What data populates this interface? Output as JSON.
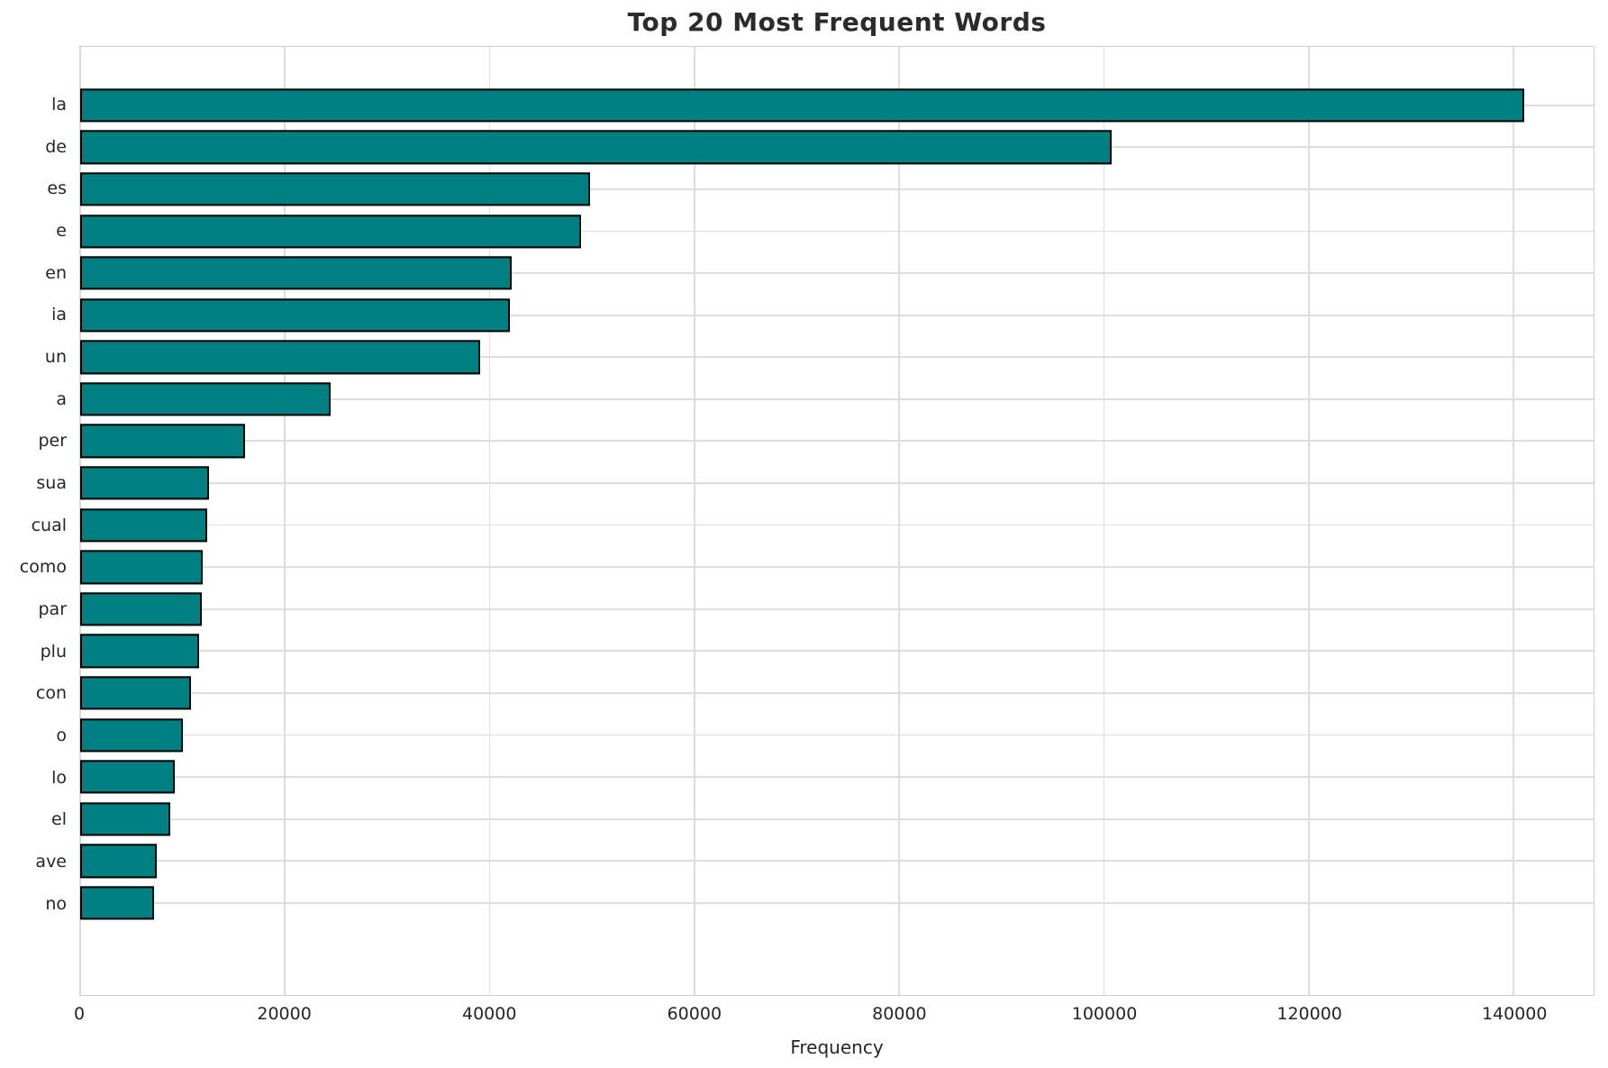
{
  "title": "Top 20 Most Frequent Words",
  "chart_data": {
    "type": "bar",
    "orientation": "horizontal",
    "title": "Top 20 Most Frequent Words",
    "xlabel": "Frequency",
    "ylabel": "",
    "categories": [
      "la",
      "de",
      "es",
      "e",
      "en",
      "ia",
      "un",
      "a",
      "per",
      "sua",
      "cual",
      "como",
      "par",
      "plu",
      "con",
      "o",
      "lo",
      "el",
      "ave",
      "no"
    ],
    "values": [
      141000,
      100700,
      49800,
      48900,
      42100,
      42000,
      39100,
      24500,
      16100,
      12600,
      12400,
      12000,
      11900,
      11650,
      10800,
      10000,
      9200,
      8800,
      7450,
      7200
    ],
    "xticks": [
      0,
      20000,
      40000,
      60000,
      80000,
      100000,
      120000,
      140000
    ],
    "xtick_labels": [
      "0",
      "20000",
      "40000",
      "60000",
      "80000",
      "100000",
      "120000",
      "140000"
    ],
    "xlim": [
      0,
      147800
    ],
    "grid": true,
    "legend": "none",
    "bar_color": "#008080",
    "bar_edge_color": "#000000",
    "grid_color": "#dcdcdc",
    "spine_color": "#cccccc",
    "text_color": "#262626",
    "background_color": "#ffffff"
  }
}
